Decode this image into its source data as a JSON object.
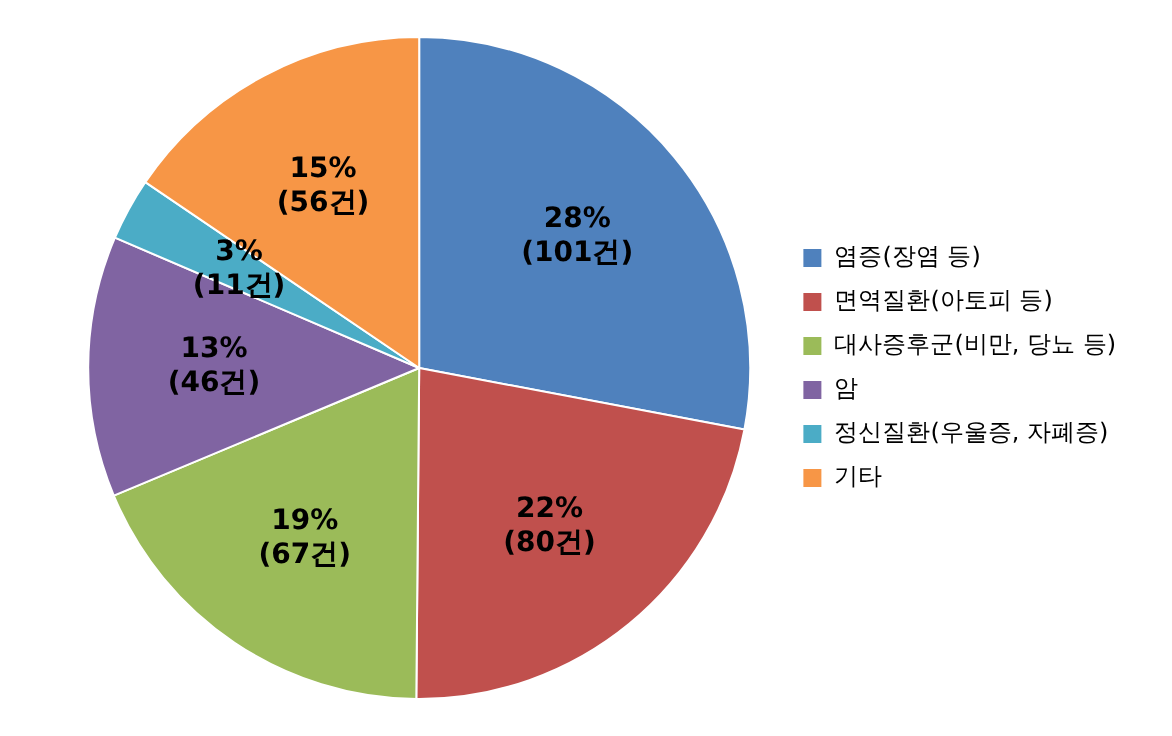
{
  "chart_data": {
    "type": "pie",
    "categories": [
      "염증(장염 등)",
      "면역질환(아토피 등)",
      "대사증후군(비만, 당뇨 등)",
      "암",
      "정신질환(우울증, 자폐증)",
      "기타"
    ],
    "values": [
      101,
      80,
      67,
      46,
      11,
      56
    ],
    "value_labels": [
      "28% (101건)",
      "22% (80건)",
      "19% (67건)",
      "13% (46건)",
      "3% (11건)",
      "15% (56건)"
    ],
    "colors": [
      "#4f81bd",
      "#c0504d",
      "#9bbb59",
      "#8064a2",
      "#4bacc6",
      "#f79646"
    ],
    "legend": "right"
  }
}
